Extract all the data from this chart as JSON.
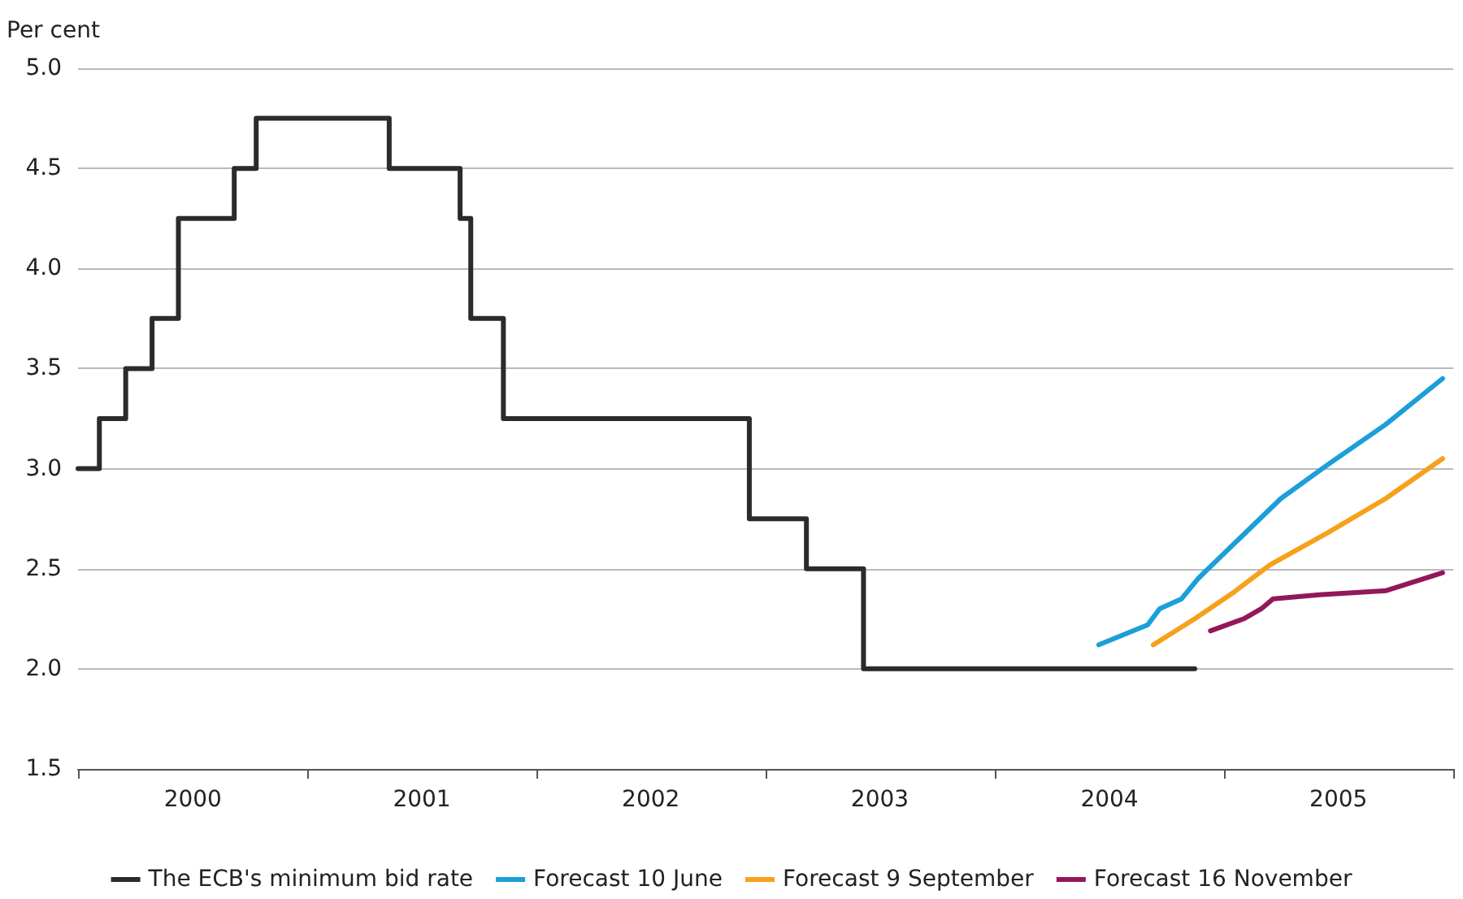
{
  "chart_data": {
    "type": "line",
    "ylabel": "Per cent",
    "xlim": [
      "2000-01-01",
      "2006-01-01"
    ],
    "xticks": [
      {
        "value": "2000-01-01",
        "label": null
      },
      {
        "value": "2000-07-02",
        "label": "2000"
      },
      {
        "value": "2001-01-01",
        "label": null
      },
      {
        "value": "2001-07-02",
        "label": "2001"
      },
      {
        "value": "2002-01-01",
        "label": null
      },
      {
        "value": "2002-07-02",
        "label": "2002"
      },
      {
        "value": "2003-01-01",
        "label": null
      },
      {
        "value": "2003-07-02",
        "label": "2003"
      },
      {
        "value": "2004-01-01",
        "label": null
      },
      {
        "value": "2004-07-02",
        "label": "2004"
      },
      {
        "value": "2005-01-01",
        "label": null
      },
      {
        "value": "2005-07-02",
        "label": "2005"
      },
      {
        "value": "2006-01-01",
        "label": null
      }
    ],
    "ylim": [
      1.5,
      5.0
    ],
    "yticks": [
      {
        "value": 1.5,
        "label": "1.5"
      },
      {
        "value": 2.0,
        "label": "2.0"
      },
      {
        "value": 2.5,
        "label": "2.5"
      },
      {
        "value": 3.0,
        "label": "3.0"
      },
      {
        "value": 3.5,
        "label": "3.5"
      },
      {
        "value": 4.0,
        "label": "4.0"
      },
      {
        "value": 4.5,
        "label": "4.5"
      },
      {
        "value": 5.0,
        "label": "5.0"
      }
    ],
    "grid": "y",
    "legend": "bottom",
    "marker": "none",
    "line_style": "solid",
    "series": [
      {
        "name": "The ECB's minimum bid rate",
        "type": "step",
        "color": "#2b2b2b",
        "x": [
          "2000-01-01",
          "2000-02-04",
          "2000-03-17",
          "2000-04-28",
          "2000-06-09",
          "2000-09-06",
          "2000-10-11",
          "2001-05-11",
          "2001-09-01",
          "2001-09-18",
          "2001-11-09",
          "2002-12-06",
          "2003-03-07",
          "2003-06-06",
          "2004-11-15"
        ],
        "values": [
          3.0,
          3.25,
          3.5,
          3.75,
          4.25,
          4.5,
          4.75,
          4.5,
          4.25,
          3.75,
          3.25,
          2.75,
          2.5,
          2.0,
          2.0
        ]
      },
      {
        "name": "Forecast 10 June",
        "color": "#1b9fd8",
        "x": [
          "2004-06-15",
          "2004-09-01",
          "2004-09-20",
          "2004-10-25",
          "2004-11-20",
          "2005-01-15",
          "2005-04-01",
          "2005-06-15",
          "2005-09-15",
          "2005-12-15"
        ],
        "values": [
          2.12,
          2.22,
          2.3,
          2.35,
          2.45,
          2.62,
          2.85,
          3.02,
          3.22,
          3.45
        ]
      },
      {
        "name": "Forecast 9 September",
        "color": "#f7a11a",
        "x": [
          "2004-09-10",
          "2004-11-15",
          "2005-01-15",
          "2005-03-15",
          "2005-06-15",
          "2005-09-15",
          "2005-12-15"
        ],
        "values": [
          2.12,
          2.25,
          2.38,
          2.52,
          2.68,
          2.85,
          3.05
        ]
      },
      {
        "name": "Forecast 16 November",
        "color": "#93175b",
        "x": [
          "2004-12-10",
          "2005-02-01",
          "2005-03-01",
          "2005-03-20",
          "2005-06-01",
          "2005-09-15",
          "2005-12-15"
        ],
        "values": [
          2.19,
          2.25,
          2.3,
          2.35,
          2.37,
          2.39,
          2.48
        ]
      }
    ]
  }
}
